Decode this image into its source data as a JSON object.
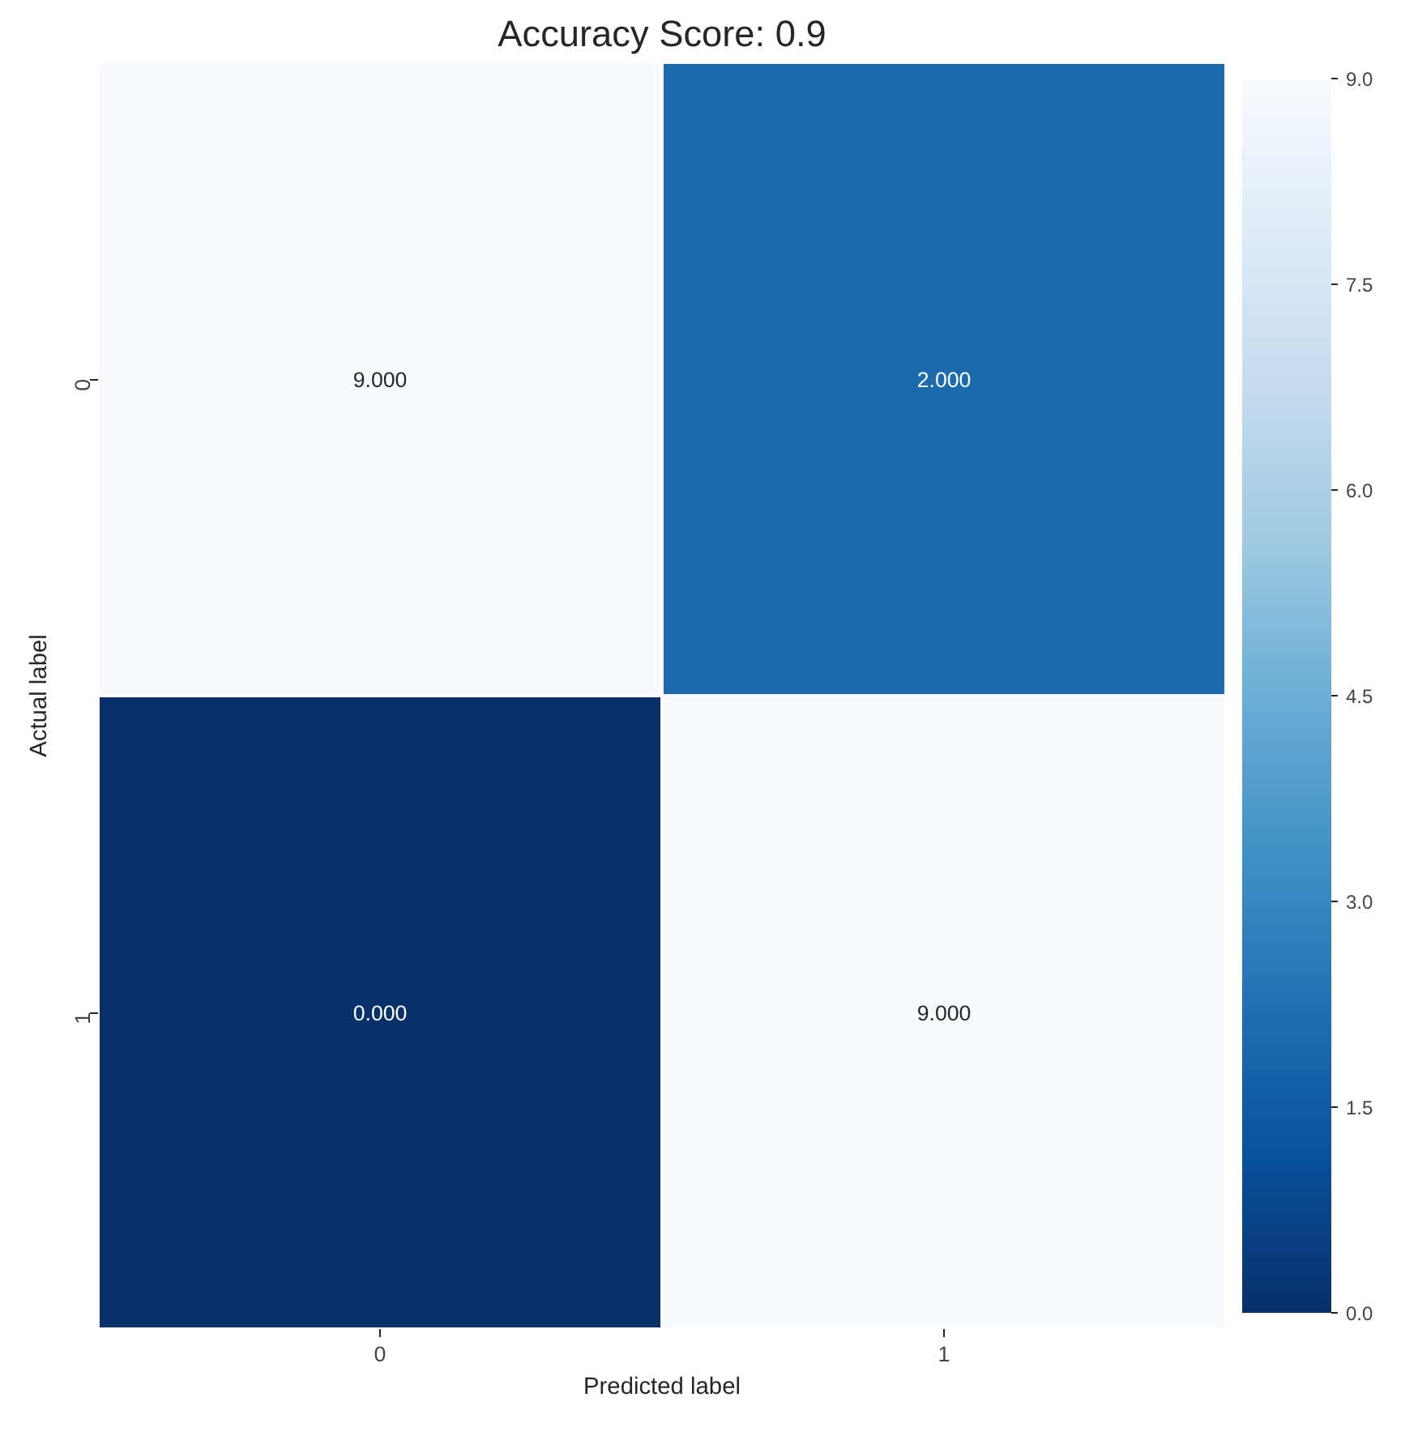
{
  "chart_data": {
    "type": "heatmap",
    "title": "Accuracy Score: 0.9",
    "xlabel": "Predicted label",
    "ylabel": "Actual label",
    "categories": [
      "0",
      "1"
    ],
    "y_categories": [
      "0",
      "1"
    ],
    "cells": [
      [
        9,
        2
      ],
      [
        0,
        9
      ]
    ],
    "cell_labels": [
      [
        "9.000",
        "2.000"
      ],
      [
        "0.000",
        "9.000"
      ]
    ],
    "clim": [
      0,
      9
    ],
    "cticks": [
      {
        "value": 0,
        "label": "0.0"
      },
      {
        "value": 1.5,
        "label": "1.5"
      },
      {
        "value": 3,
        "label": "3.0"
      },
      {
        "value": 4.5,
        "label": "4.5"
      },
      {
        "value": 6,
        "label": "6.0"
      },
      {
        "value": 7.5,
        "label": "7.5"
      },
      {
        "value": 9,
        "label": "9.0"
      }
    ]
  }
}
